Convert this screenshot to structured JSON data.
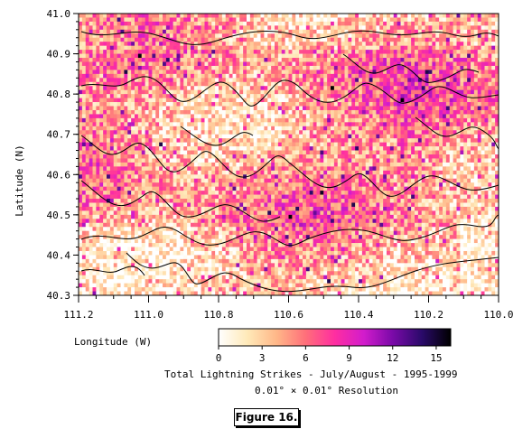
{
  "chart_data": {
    "type": "heatmap",
    "xlabel": "Longitude (W)",
    "ylabel": "Latitude (N)",
    "xlim": [
      111.2,
      110.0
    ],
    "ylim": [
      40.3,
      41.0
    ],
    "x_ticks": [
      "111.2",
      "111.0",
      "110.8",
      "110.6",
      "110.4",
      "110.2",
      "110.0"
    ],
    "x_tick_values": [
      111.2,
      111.0,
      110.8,
      110.6,
      110.4,
      110.2,
      110.0
    ],
    "y_ticks": [
      "41.0",
      "40.9",
      "40.8",
      "40.7",
      "40.6",
      "40.5",
      "40.4",
      "40.3"
    ],
    "y_tick_values": [
      41.0,
      40.9,
      40.8,
      40.7,
      40.6,
      40.5,
      40.4,
      40.3
    ],
    "colorbar": {
      "min": 0,
      "max": 16,
      "ticks": [
        "0",
        "3",
        "6",
        "9",
        "12",
        "15"
      ],
      "tick_values": [
        0,
        3,
        6,
        9,
        12,
        15
      ],
      "colors": [
        "#ffffff",
        "#ffe9b8",
        "#ffb788",
        "#ff6f7a",
        "#ff2ea0",
        "#d21ccc",
        "#7a0aa8",
        "#2a0a6a",
        "#000000"
      ]
    },
    "title": "Total Lightning Strikes - July/August - 1995-1999",
    "subtitle": "0.01° × 0.01° Resolution",
    "grid": false
  },
  "figure_label": "Figure 16."
}
